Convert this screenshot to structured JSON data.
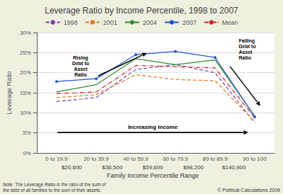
{
  "chart_data": {
    "type": "line",
    "title": "Leverage Ratio by Income Percentile, 1998 to 2007",
    "x_label": "Family Income Percentile Range",
    "y_label": "Leverage Ratio",
    "categories": [
      "0 to 19.9",
      "20 to 39.9",
      "40 to 59.9",
      "60 to 79.9",
      "80 to 89.9",
      "90 to 100"
    ],
    "series": [
      {
        "name": "1998",
        "color": "#7b3fa0",
        "line_style": "dashed",
        "marker": "none",
        "values": [
          0.128,
          0.138,
          0.208,
          0.22,
          0.2,
          0.075
        ]
      },
      {
        "name": "2001",
        "color": "#e07820",
        "line_style": "dashed",
        "marker": "none",
        "values": [
          0.138,
          0.145,
          0.195,
          0.183,
          0.18,
          0.078
        ]
      },
      {
        "name": "2004",
        "color": "#2e8b2e",
        "line_style": "solid",
        "marker": "none",
        "values": [
          0.152,
          0.17,
          0.235,
          0.22,
          0.232,
          0.092
        ]
      },
      {
        "name": "2007",
        "color": "#2255cc",
        "line_style": "solid",
        "marker": "circle",
        "values": [
          0.178,
          0.185,
          0.245,
          0.253,
          0.238,
          0.09
        ]
      },
      {
        "name": "Mean",
        "color": "#cc2222",
        "line_style": "dashdot",
        "marker": "none",
        "values": [
          0.148,
          0.152,
          0.218,
          0.215,
          0.212,
          0.088
        ]
      }
    ],
    "ylim": [
      0.0,
      0.3
    ],
    "yticks": [
      {
        "value": 0.0,
        "label": "0%"
      },
      {
        "value": 0.05,
        "label": "5%"
      },
      {
        "value": 0.1,
        "label": "10%"
      },
      {
        "value": 0.15,
        "label": "15%"
      },
      {
        "value": 0.2,
        "label": "20%"
      },
      {
        "value": 0.25,
        "label": "25%"
      },
      {
        "value": 0.3,
        "label": "30%"
      }
    ],
    "grid": true,
    "legend": "top",
    "annotations": [
      "Rising\nDebt to\nAsset\nRatio",
      "Falling\nDebt to\nAsset\nRatio",
      "Increasing Income"
    ],
    "secondary_x_labels": [
      "$20,600",
      "$36,500",
      "$59,600",
      "$98,200",
      "$140,900"
    ],
    "note": "Note: The Leverage Ratio is the ratio of the sum of\nthe debt of all families to the sum of their assets.",
    "credit": "© Political Calculations 2009"
  }
}
